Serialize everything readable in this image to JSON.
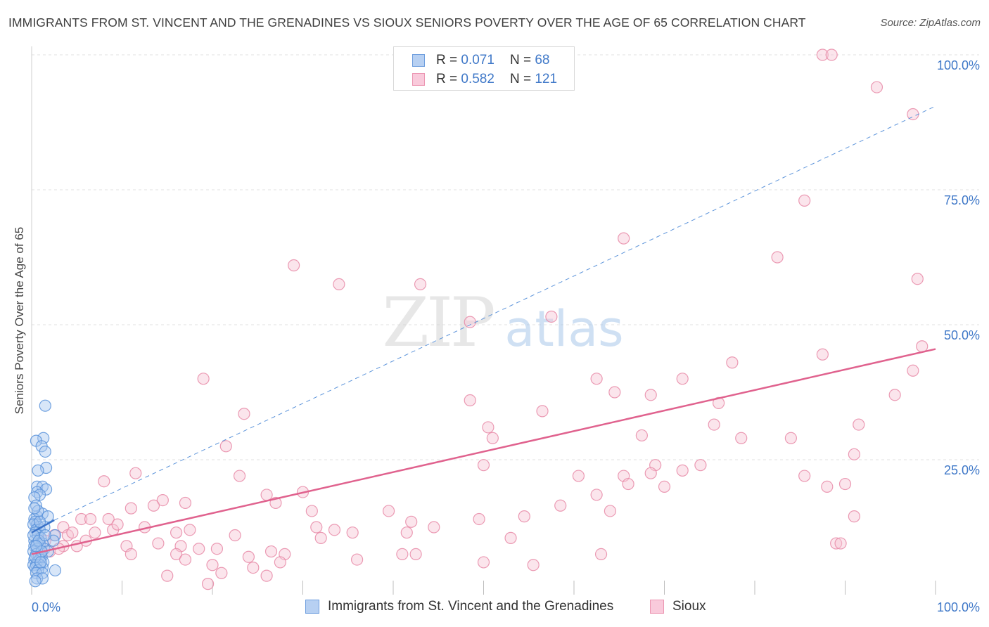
{
  "title": "IMMIGRANTS FROM ST. VINCENT AND THE GRENADINES VS SIOUX SENIORS POVERTY OVER THE AGE OF 65 CORRELATION CHART",
  "source": "Source: ZipAtlas.com",
  "watermark": {
    "zip": "ZIP",
    "atlas": "atlas"
  },
  "legend_stats": [
    {
      "r_label": "R =",
      "r_value": "0.071",
      "n_label": "N =",
      "n_value": "68"
    },
    {
      "r_label": "R =",
      "r_value": "0.582",
      "n_label": "N =",
      "n_value": "121"
    }
  ],
  "colors": {
    "blue_fill": "#a9c8f0",
    "blue_stroke": "#5b93da",
    "blue_line": "#3a72c8",
    "pink_fill": "#f7c6d5",
    "pink_stroke": "#e889a7",
    "pink_line": "#e0628e",
    "grid": "#e1e1e1",
    "tick_label": "#3f78c8"
  },
  "chart_data": {
    "type": "scatter",
    "title": "IMMIGRANTS FROM ST. VINCENT AND THE GRENADINES VS SIOUX SENIORS POVERTY OVER THE AGE OF 65 CORRELATION CHART",
    "xlabel": "",
    "ylabel": "Seniors Poverty Over the Age of 65",
    "xlim": [
      0,
      100
    ],
    "ylim": [
      0,
      100
    ],
    "x_tick_labels": [
      "0.0%",
      "100.0%"
    ],
    "y_ticks": [
      25,
      50,
      75,
      100
    ],
    "y_tick_labels": [
      "25.0%",
      "50.0%",
      "75.0%",
      "100.0%"
    ],
    "series": [
      {
        "name": "Immigrants from St. Vincent and the Grenadines",
        "color": "blue",
        "r": 0.071,
        "n": 68,
        "trend": {
          "style": "solid",
          "x": [
            0.0,
            2.5
          ],
          "y": [
            11.5,
            13.8
          ]
        },
        "trend_extended": {
          "style": "dashed",
          "x": [
            2.5,
            100
          ],
          "y": [
            13.8,
            90.5
          ]
        },
        "points": [
          [
            1.5,
            35
          ],
          [
            1.3,
            29
          ],
          [
            0.5,
            28.5
          ],
          [
            1.1,
            27.5
          ],
          [
            1.5,
            26.5
          ],
          [
            1.6,
            23.5
          ],
          [
            0.7,
            23
          ],
          [
            0.6,
            20
          ],
          [
            1.2,
            20
          ],
          [
            1.6,
            19.5
          ],
          [
            0.6,
            19
          ],
          [
            0.9,
            18.5
          ],
          [
            0.3,
            18
          ],
          [
            0.5,
            16.5
          ],
          [
            0.6,
            14.5
          ],
          [
            1.2,
            15
          ],
          [
            1.8,
            14.5
          ],
          [
            0.3,
            14
          ],
          [
            0.4,
            13.5
          ],
          [
            0.6,
            13
          ],
          [
            0.8,
            12.5
          ],
          [
            0.2,
            13
          ],
          [
            0.5,
            12
          ],
          [
            0.9,
            12
          ],
          [
            1.4,
            12.5
          ],
          [
            0.4,
            11.5
          ],
          [
            0.7,
            11
          ],
          [
            1.0,
            10.5
          ],
          [
            2.6,
            11
          ],
          [
            0.3,
            10
          ],
          [
            0.6,
            9.5
          ],
          [
            0.9,
            9.5
          ],
          [
            1.2,
            9.5
          ],
          [
            2.4,
            10
          ],
          [
            0.3,
            9
          ],
          [
            0.6,
            8.5
          ],
          [
            1.4,
            8.5
          ],
          [
            1.8,
            8
          ],
          [
            0.2,
            8
          ],
          [
            0.5,
            7.5
          ],
          [
            0.8,
            7
          ],
          [
            1.1,
            7
          ],
          [
            0.3,
            6.5
          ],
          [
            0.6,
            6
          ],
          [
            0.9,
            6.5
          ],
          [
            1.3,
            6
          ],
          [
            0.2,
            5.5
          ],
          [
            0.5,
            5.5
          ],
          [
            0.9,
            5.5
          ],
          [
            1.2,
            5
          ],
          [
            0.4,
            5
          ],
          [
            0.7,
            4.5
          ],
          [
            2.6,
            4.5
          ],
          [
            0.5,
            4
          ],
          [
            1.2,
            4
          ],
          [
            0.6,
            3
          ],
          [
            1.2,
            3
          ],
          [
            0.4,
            2.5
          ],
          [
            0.2,
            11
          ],
          [
            0.8,
            10
          ],
          [
            1.1,
            8
          ],
          [
            0.4,
            7
          ],
          [
            0.7,
            15.5
          ],
          [
            0.3,
            16
          ],
          [
            1.5,
            11
          ],
          [
            0.9,
            13.5
          ],
          [
            0.5,
            9
          ],
          [
            1.0,
            6
          ]
        ]
      },
      {
        "name": "Sioux",
        "color": "pink",
        "r": 0.582,
        "n": 121,
        "trend": {
          "style": "solid",
          "x": [
            0,
            100
          ],
          "y": [
            7.5,
            45.5
          ]
        },
        "points": [
          [
            87.5,
            100
          ],
          [
            88.5,
            100
          ],
          [
            93.5,
            94
          ],
          [
            97.5,
            89
          ],
          [
            65.5,
            66
          ],
          [
            85.5,
            73
          ],
          [
            82.5,
            62.5
          ],
          [
            98,
            58.5
          ],
          [
            29,
            61
          ],
          [
            34,
            57.5
          ],
          [
            43,
            57.5
          ],
          [
            48.5,
            50.5
          ],
          [
            57.5,
            51.5
          ],
          [
            98.5,
            46
          ],
          [
            87.5,
            44.5
          ],
          [
            77.5,
            43
          ],
          [
            97.5,
            41.5
          ],
          [
            95.5,
            37
          ],
          [
            62.5,
            40
          ],
          [
            48.5,
            36
          ],
          [
            72,
            40
          ],
          [
            68.5,
            37
          ],
          [
            76,
            35.5
          ],
          [
            64.5,
            37.5
          ],
          [
            75.5,
            31.5
          ],
          [
            91.5,
            31.5
          ],
          [
            56.5,
            34
          ],
          [
            50.5,
            31
          ],
          [
            51,
            29
          ],
          [
            67.5,
            29.5
          ],
          [
            78.5,
            29
          ],
          [
            84,
            29
          ],
          [
            91,
            26
          ],
          [
            69,
            24
          ],
          [
            74,
            24
          ],
          [
            50,
            24
          ],
          [
            68.5,
            22.5
          ],
          [
            72,
            23
          ],
          [
            60.5,
            22
          ],
          [
            65.5,
            22
          ],
          [
            85.5,
            22
          ],
          [
            66,
            20.5
          ],
          [
            88,
            20
          ],
          [
            90,
            20.5
          ],
          [
            70,
            20
          ],
          [
            19,
            40
          ],
          [
            23.5,
            33.5
          ],
          [
            21.5,
            27.5
          ],
          [
            11.5,
            22.5
          ],
          [
            8,
            21
          ],
          [
            23,
            22
          ],
          [
            30,
            19
          ],
          [
            26,
            18.5
          ],
          [
            11,
            16
          ],
          [
            14.5,
            17.5
          ],
          [
            17,
            17
          ],
          [
            13.5,
            16.5
          ],
          [
            27,
            17
          ],
          [
            31,
            15.5
          ],
          [
            39.5,
            15.5
          ],
          [
            42,
            13.5
          ],
          [
            64,
            15.5
          ],
          [
            58.5,
            16.5
          ],
          [
            62.5,
            18.5
          ],
          [
            54.5,
            14.5
          ],
          [
            49.5,
            14
          ],
          [
            41.5,
            11.5
          ],
          [
            31.5,
            12.5
          ],
          [
            33.5,
            12
          ],
          [
            35.5,
            11.5
          ],
          [
            44.5,
            12.5
          ],
          [
            53,
            10.5
          ],
          [
            32,
            10.5
          ],
          [
            22.5,
            11
          ],
          [
            16,
            11.5
          ],
          [
            12.5,
            12.5
          ],
          [
            9,
            12
          ],
          [
            5.5,
            14
          ],
          [
            6.5,
            14
          ],
          [
            8.5,
            14
          ],
          [
            9.5,
            13
          ],
          [
            7,
            11.5
          ],
          [
            3.5,
            12.5
          ],
          [
            4,
            11
          ],
          [
            17.5,
            12
          ],
          [
            6,
            10
          ],
          [
            10.5,
            9
          ],
          [
            14,
            9.5
          ],
          [
            5,
            9
          ],
          [
            16.5,
            9
          ],
          [
            18.5,
            8.5
          ],
          [
            20.5,
            8.5
          ],
          [
            26.5,
            8
          ],
          [
            28,
            7.5
          ],
          [
            24,
            7
          ],
          [
            16,
            7.5
          ],
          [
            11,
            7.5
          ],
          [
            3.5,
            9
          ],
          [
            2.5,
            11
          ],
          [
            17,
            6.5
          ],
          [
            20,
            5.5
          ],
          [
            27.5,
            6
          ],
          [
            36,
            6.5
          ],
          [
            41,
            7.5
          ],
          [
            42.5,
            7.5
          ],
          [
            50,
            6
          ],
          [
            55.5,
            5.5
          ],
          [
            63,
            7.5
          ],
          [
            24.5,
            5
          ],
          [
            21,
            4
          ],
          [
            26,
            3.5
          ],
          [
            15,
            3.5
          ],
          [
            19.5,
            2
          ],
          [
            1.5,
            10
          ],
          [
            2,
            8
          ],
          [
            3,
            8.5
          ],
          [
            89,
            9.5
          ],
          [
            89.5,
            9.5
          ],
          [
            91,
            14.5
          ],
          [
            4.5,
            11.5
          ]
        ]
      }
    ]
  },
  "legend_bottom": [
    {
      "label": "Immigrants from St. Vincent and the Grenadines"
    },
    {
      "label": "Sioux"
    }
  ]
}
